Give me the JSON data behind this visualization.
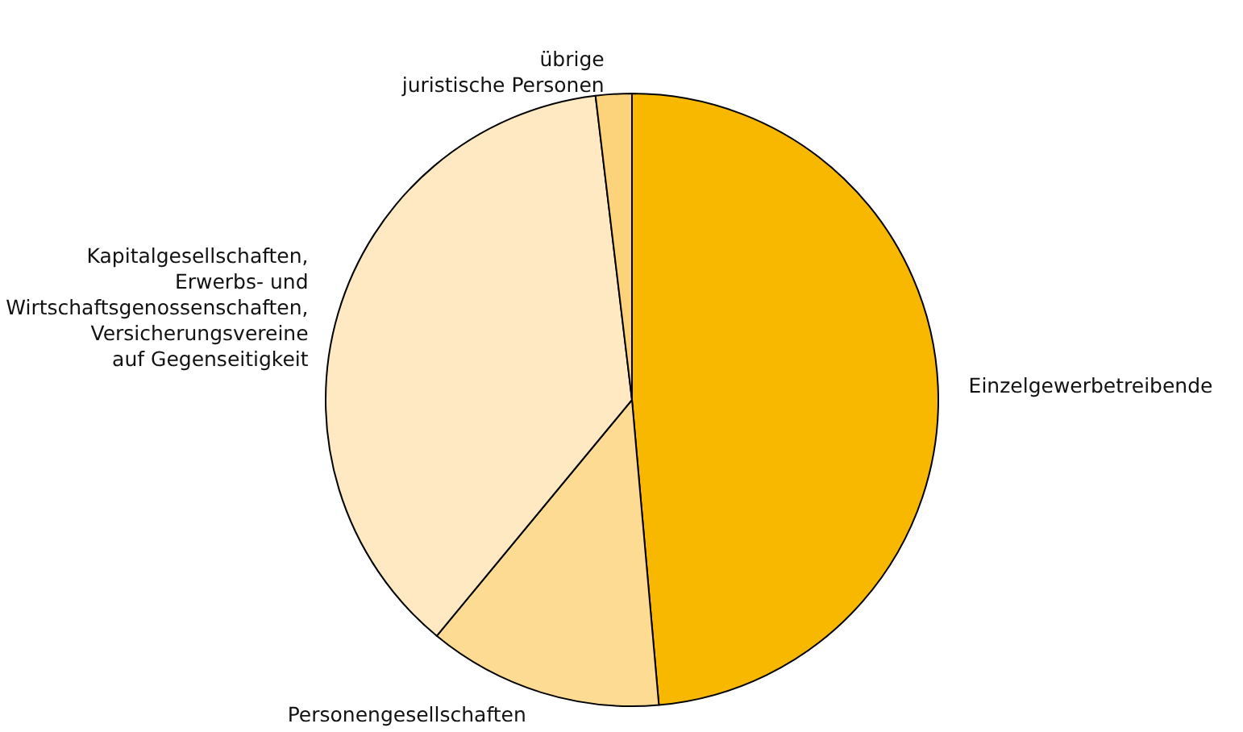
{
  "chart_data": {
    "type": "pie",
    "categories": [
      "Einzelgewerbetreibende",
      "Personengesellschaften",
      "Kapitalgesellschaften,\nErwerbs- und\nWirtschaftsgenossenschaften,\nVersicherungsvereine\nauf Gegenseitigkeit",
      "übrige\njuristische Personen"
    ],
    "values": [
      48.6,
      12.4,
      37.1,
      1.9
    ],
    "colors": [
      "#f8b800",
      "#fddb93",
      "#fee9c2",
      "#fcd37a"
    ],
    "legend": false
  }
}
